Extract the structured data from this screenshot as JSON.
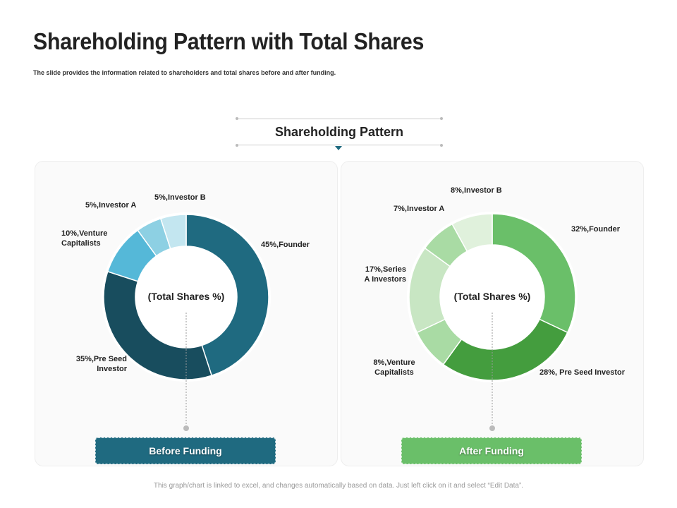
{
  "title": "Shareholding Pattern with Total Shares",
  "subtitle": "The slide provides the information related to shareholders and total shares before and after funding.",
  "banner": "Shareholding Pattern",
  "footer": "This graph/chart is linked to excel, and changes automatically based on data. Just left click on it and select “Edit Data”.",
  "chart_data": [
    {
      "type": "pie",
      "variant": "donut",
      "center_label": "(Total Shares %)",
      "button": "Before Funding",
      "button_color": "#1f6a80",
      "slices": [
        {
          "name": "Founder",
          "value": 45,
          "label": "45%,Founder",
          "color": "#1f6a80"
        },
        {
          "name": "Pre Seed Investor",
          "value": 35,
          "label": "35%,Pre Seed Investor",
          "color": "#184d5e"
        },
        {
          "name": "Venture Capitalists",
          "value": 10,
          "label": "10%,Venture Capitalists",
          "color": "#55b8d8"
        },
        {
          "name": "Investor A",
          "value": 5,
          "label": "5%,Investor A",
          "color": "#8dd0e3"
        },
        {
          "name": "Investor B",
          "value": 5,
          "label": "5%,Investor B",
          "color": "#c3e6f0"
        }
      ]
    },
    {
      "type": "pie",
      "variant": "donut",
      "center_label": "(Total Shares %)",
      "button": "After Funding",
      "button_color": "#6abf69",
      "slices": [
        {
          "name": "Founder",
          "value": 32,
          "label": "32%,Founder",
          "color": "#6abf69"
        },
        {
          "name": "Pre Seed Investor",
          "value": 28,
          "label": "28%, Pre Seed Investor",
          "color": "#449d3e"
        },
        {
          "name": "Venture Capitalists",
          "value": 8,
          "label": "8%,Venture Capitalists",
          "color": "#a9dba4"
        },
        {
          "name": "Series A Investors",
          "value": 17,
          "label": "17%,Series A Investors",
          "color": "#c8e6c3"
        },
        {
          "name": "Investor A",
          "value": 7,
          "label": "7%,Investor A",
          "color": "#a9dba4"
        },
        {
          "name": "Investor B",
          "value": 8,
          "label": "8%,Investor B",
          "color": "#e0f1dc"
        }
      ]
    }
  ]
}
